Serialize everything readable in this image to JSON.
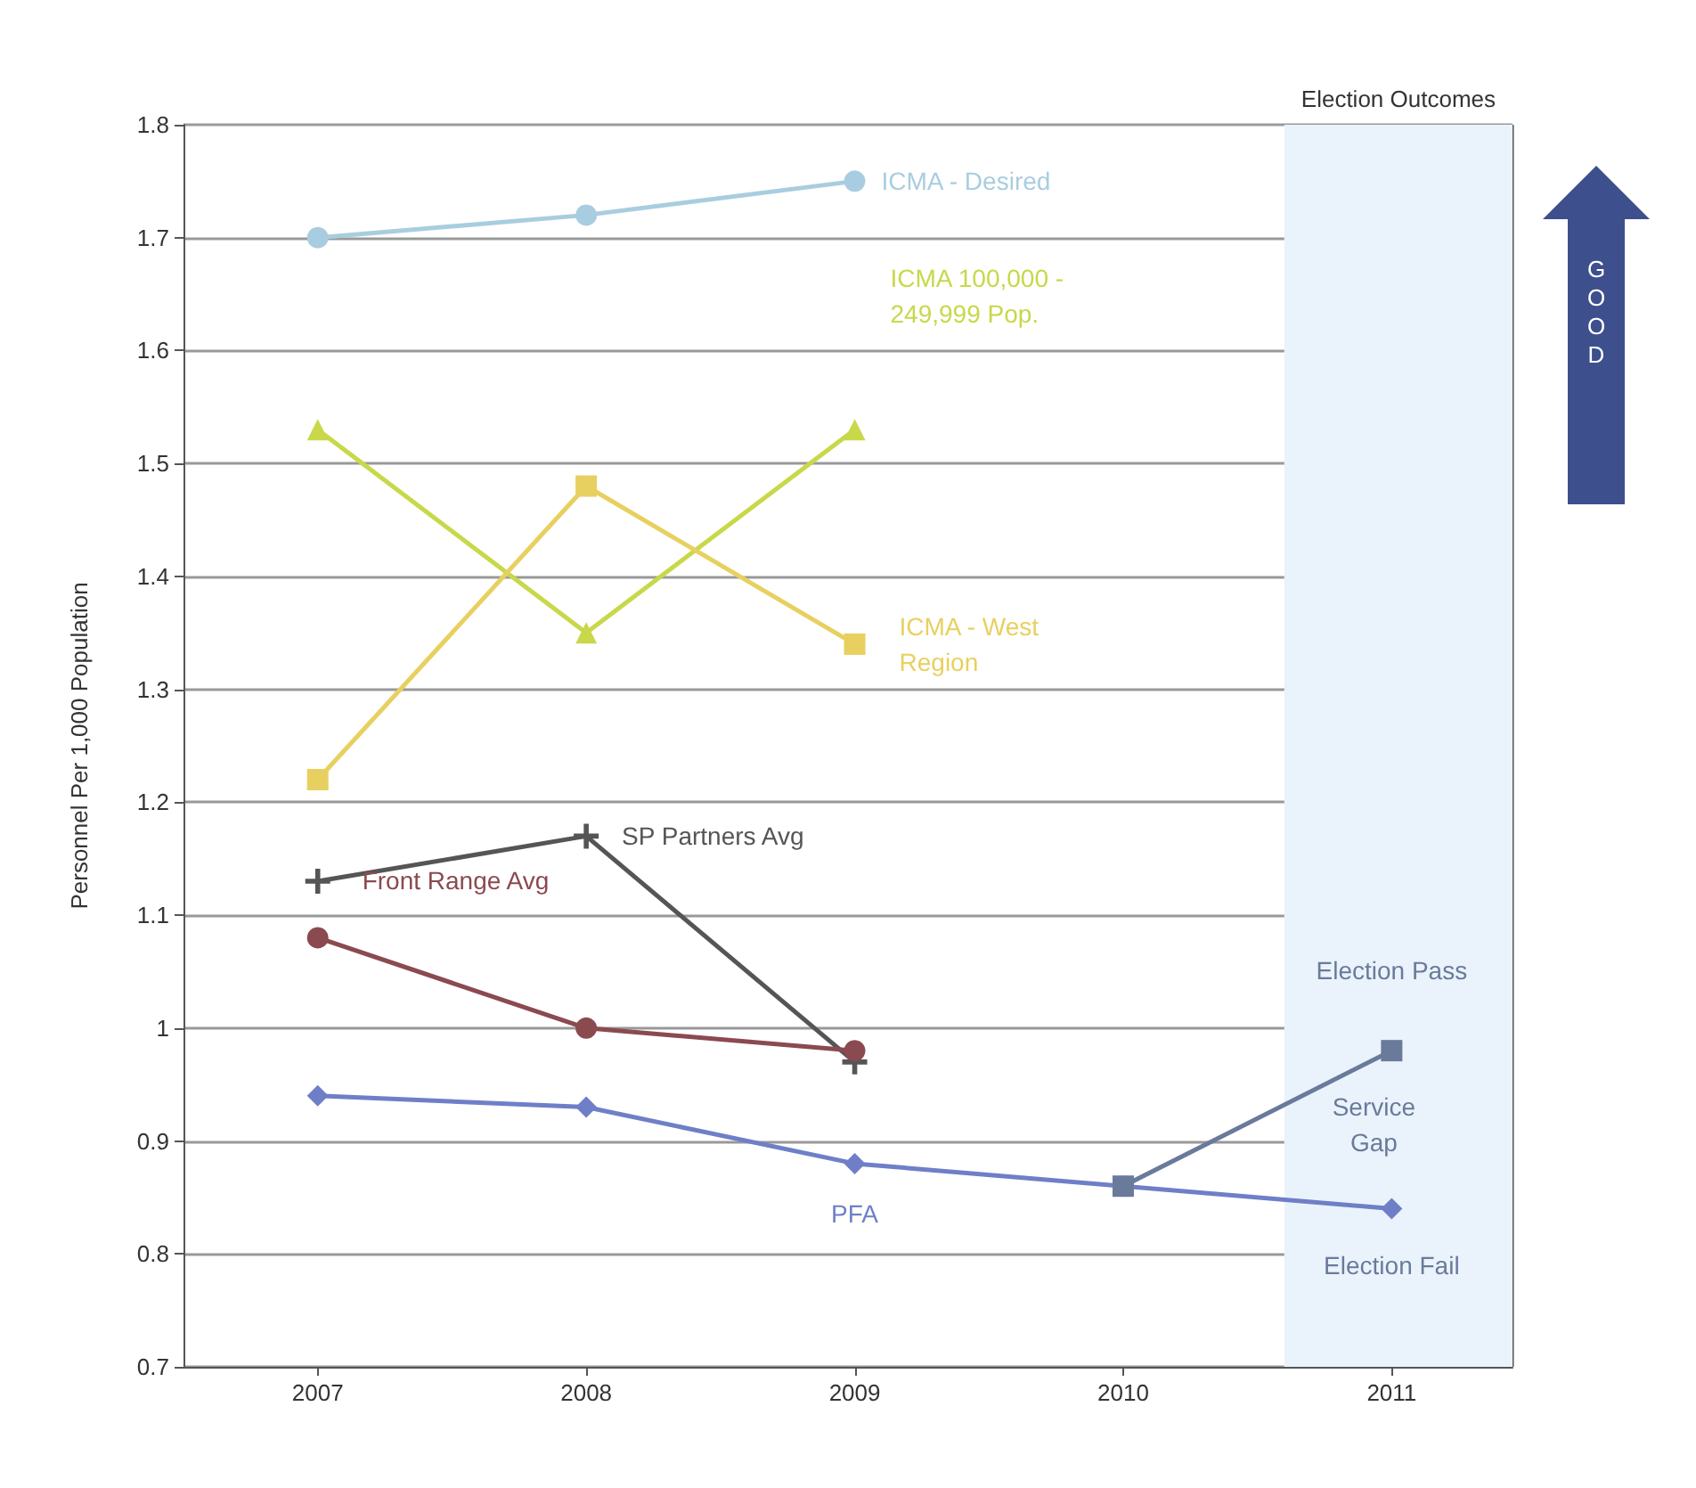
{
  "chart_data": {
    "type": "line",
    "ylabel": "Personnel Per 1,000 Population",
    "x": [
      2007,
      2008,
      2009,
      2010,
      2011
    ],
    "xlim": [
      2006.5,
      2011.45
    ],
    "xticks": [
      2007,
      2008,
      2009,
      2010,
      2011
    ],
    "ylim": [
      0.7,
      1.8
    ],
    "yticks": [
      0.7,
      0.8,
      0.9,
      1,
      1.1,
      1.2,
      1.3,
      1.4,
      1.5,
      1.6,
      1.7,
      1.8
    ],
    "grid": "y",
    "legend": false,
    "series": [
      {
        "name": "ICMA - Desired",
        "color": "#a9cde0",
        "marker": "circle",
        "values": [
          1.7,
          1.72,
          1.75,
          null,
          null
        ]
      },
      {
        "name": "ICMA 100,000 -\n249,999 Pop.",
        "color": "#c8d84a",
        "marker": "triangle",
        "values": [
          1.53,
          1.35,
          1.53,
          null,
          null
        ]
      },
      {
        "name": "ICMA - West\nRegion",
        "color": "#e8d060",
        "marker": "square",
        "values": [
          1.22,
          1.48,
          1.34,
          null,
          null
        ]
      },
      {
        "name": "SP Partners Avg",
        "color": "#555555",
        "marker": "cross",
        "values": [
          1.13,
          1.17,
          0.97,
          null,
          null
        ]
      },
      {
        "name": "Front Range Avg",
        "color": "#8b4a50",
        "marker": "circle",
        "values": [
          1.08,
          1.0,
          0.98,
          null,
          null
        ]
      },
      {
        "name": "PFA",
        "color": "#6f7fc7",
        "marker": "diamond",
        "values": [
          0.94,
          0.93,
          0.88,
          0.86,
          0.84
        ]
      },
      {
        "name": "Election Pass",
        "color": "#6a7a9a",
        "marker": "square",
        "values": [
          null,
          null,
          null,
          0.86,
          0.98
        ]
      }
    ],
    "bands": [
      {
        "axis": "x",
        "from": 2010.6,
        "to": 2011.45,
        "label": "Election Outcomes",
        "color": "#eaf3fb"
      }
    ],
    "annotations": [
      "Service\nGap",
      "Election Fail",
      "GOOD"
    ]
  }
}
